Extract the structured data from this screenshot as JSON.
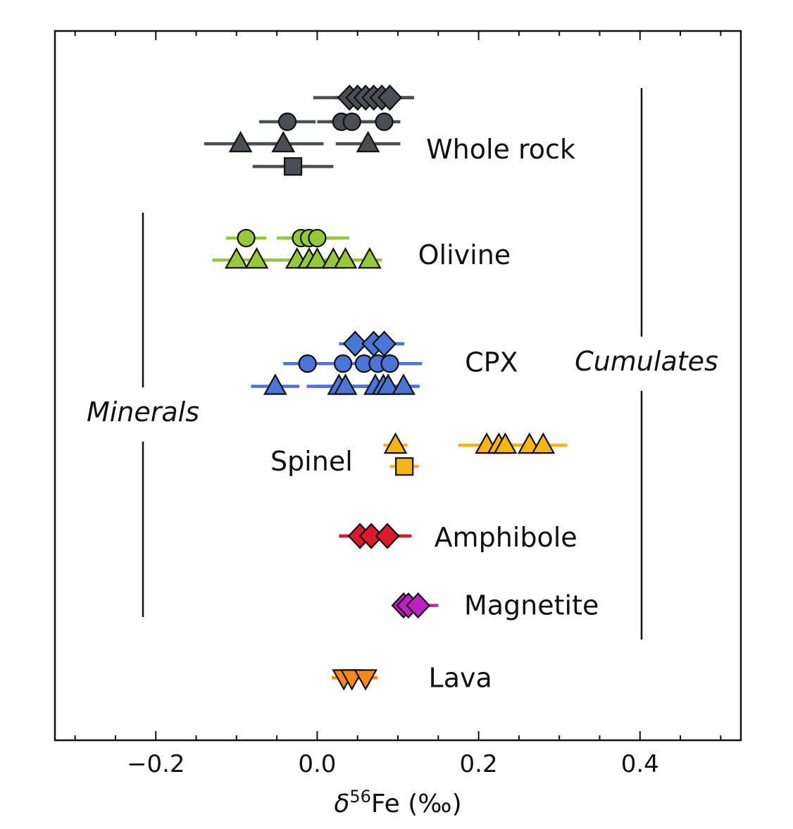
{
  "chart_data": {
    "type": "scatter",
    "xlabel_symbol": "δ",
    "xlabel_sup": "56",
    "xlabel_rest": "Fe (‰)",
    "xlim": [
      -0.325,
      0.525
    ],
    "x_ticks": [
      -0.2,
      0.0,
      0.2,
      0.4
    ],
    "x_tick_labels": [
      "−0.2",
      "0.0",
      "0.2",
      "0.4"
    ],
    "ylim": [
      0,
      1
    ],
    "grid": false,
    "side_labels": {
      "minerals": "Minerals",
      "cumulates": "Cumulates"
    },
    "groups": [
      {
        "name": "Whole rock",
        "color": "#4a4f55",
        "label_x": 0.135,
        "label_y": 0.833,
        "rows": [
          {
            "marker": "diamond",
            "y": 0.906,
            "points": [
              {
                "x": 0.04,
                "err": 0.045
              },
              {
                "x": 0.05,
                "err": 0.03
              },
              {
                "x": 0.06,
                "err": 0.03
              },
              {
                "x": 0.07,
                "err": 0.045
              },
              {
                "x": 0.08,
                "err": 0.04
              },
              {
                "x": 0.09,
                "err": 0.03
              }
            ]
          },
          {
            "marker": "circle",
            "y": 0.872,
            "points": [
              {
                "x": -0.037,
                "err": 0.035
              },
              {
                "x": 0.03,
                "err": 0.03
              },
              {
                "x": 0.043,
                "err": 0.03
              },
              {
                "x": 0.083,
                "err": 0.02
              }
            ]
          },
          {
            "marker": "triangle-up",
            "y": 0.841,
            "points": [
              {
                "x": -0.095,
                "err": 0.045
              },
              {
                "x": -0.042,
                "err": 0.05
              },
              {
                "x": 0.063,
                "err": 0.04
              }
            ]
          },
          {
            "marker": "square",
            "y": 0.809,
            "points": [
              {
                "x": -0.03,
                "err": 0.05
              }
            ]
          }
        ]
      },
      {
        "name": "Olivine",
        "color": "#96c83a",
        "label_x": 0.125,
        "label_y": 0.684,
        "rows": [
          {
            "marker": "circle",
            "y": 0.708,
            "points": [
              {
                "x": -0.088,
                "err": 0.025
              },
              {
                "x": -0.02,
                "err": 0.025
              },
              {
                "x": -0.01,
                "err": 0.04
              },
              {
                "x": 0.0,
                "err": 0.04
              }
            ]
          },
          {
            "marker": "triangle-up",
            "y": 0.677,
            "points": [
              {
                "x": -0.1,
                "err": 0.03
              },
              {
                "x": -0.075,
                "err": 0.03
              },
              {
                "x": -0.025,
                "err": 0.04
              },
              {
                "x": -0.01,
                "err": 0.04
              },
              {
                "x": 0.0,
                "err": 0.04
              },
              {
                "x": 0.02,
                "err": 0.04
              },
              {
                "x": 0.035,
                "err": 0.04
              },
              {
                "x": 0.065,
                "err": 0.015
              }
            ]
          }
        ]
      },
      {
        "name": "CPX",
        "color": "#4c75d8",
        "label_x": 0.183,
        "label_y": 0.533,
        "rows": [
          {
            "marker": "diamond",
            "y": 0.559,
            "points": [
              {
                "x": 0.047,
                "err": 0.02
              },
              {
                "x": 0.07,
                "err": 0.035
              },
              {
                "x": 0.083,
                "err": 0.025
              }
            ]
          },
          {
            "marker": "circle",
            "y": 0.531,
            "points": [
              {
                "x": -0.012,
                "err": 0.03
              },
              {
                "x": 0.032,
                "err": 0.04
              },
              {
                "x": 0.058,
                "err": 0.045
              },
              {
                "x": 0.075,
                "err": 0.05
              },
              {
                "x": 0.09,
                "err": 0.04
              }
            ]
          },
          {
            "marker": "triangle-up",
            "y": 0.499,
            "points": [
              {
                "x": -0.052,
                "err": 0.03
              },
              {
                "x": 0.027,
                "err": 0.04
              },
              {
                "x": 0.035,
                "err": 0.04
              },
              {
                "x": 0.072,
                "err": 0.04
              },
              {
                "x": 0.082,
                "err": 0.03
              },
              {
                "x": 0.088,
                "err": 0.03
              },
              {
                "x": 0.107,
                "err": 0.02
              }
            ]
          }
        ]
      },
      {
        "name": "Spinel",
        "color": "#f7b515",
        "label_x": -0.058,
        "label_y": 0.393,
        "rows": [
          {
            "marker": "triangle-up",
            "y": 0.416,
            "points": [
              {
                "x": 0.097,
                "err": 0.015
              },
              {
                "x": 0.21,
                "err": 0.035
              },
              {
                "x": 0.225,
                "err": 0.04
              },
              {
                "x": 0.233,
                "err": 0.04
              },
              {
                "x": 0.263,
                "err": 0.045
              },
              {
                "x": 0.28,
                "err": 0.03
              }
            ]
          },
          {
            "marker": "square",
            "y": 0.386,
            "points": [
              {
                "x": 0.108,
                "err": 0.018
              }
            ]
          }
        ]
      },
      {
        "name": "Amphibole",
        "color": "#dc1a2b",
        "label_x": 0.145,
        "label_y": 0.286,
        "rows": [
          {
            "marker": "diamond",
            "y": 0.288,
            "points": [
              {
                "x": 0.053,
                "err": 0.025
              },
              {
                "x": 0.067,
                "err": 0.04
              },
              {
                "x": 0.087,
                "err": 0.03
              }
            ]
          }
        ]
      },
      {
        "name": "Magnetite",
        "color": "#bf20c0",
        "label_x": 0.182,
        "label_y": 0.19,
        "rows": [
          {
            "marker": "diamond",
            "y": 0.19,
            "points": [
              {
                "x": 0.107,
                "err": 0.005
              },
              {
                "x": 0.113,
                "err": 0.008
              },
              {
                "x": 0.125,
                "err": 0.025
              }
            ]
          }
        ]
      },
      {
        "name": "Lava",
        "color": "#f58a1a",
        "label_x": 0.138,
        "label_y": 0.088,
        "rows": [
          {
            "marker": "triangle-down",
            "y": 0.088,
            "points": [
              {
                "x": 0.033,
                "err": 0.015
              },
              {
                "x": 0.043,
                "err": 0.02
              },
              {
                "x": 0.06,
                "err": 0.015
              }
            ]
          }
        ]
      }
    ]
  }
}
